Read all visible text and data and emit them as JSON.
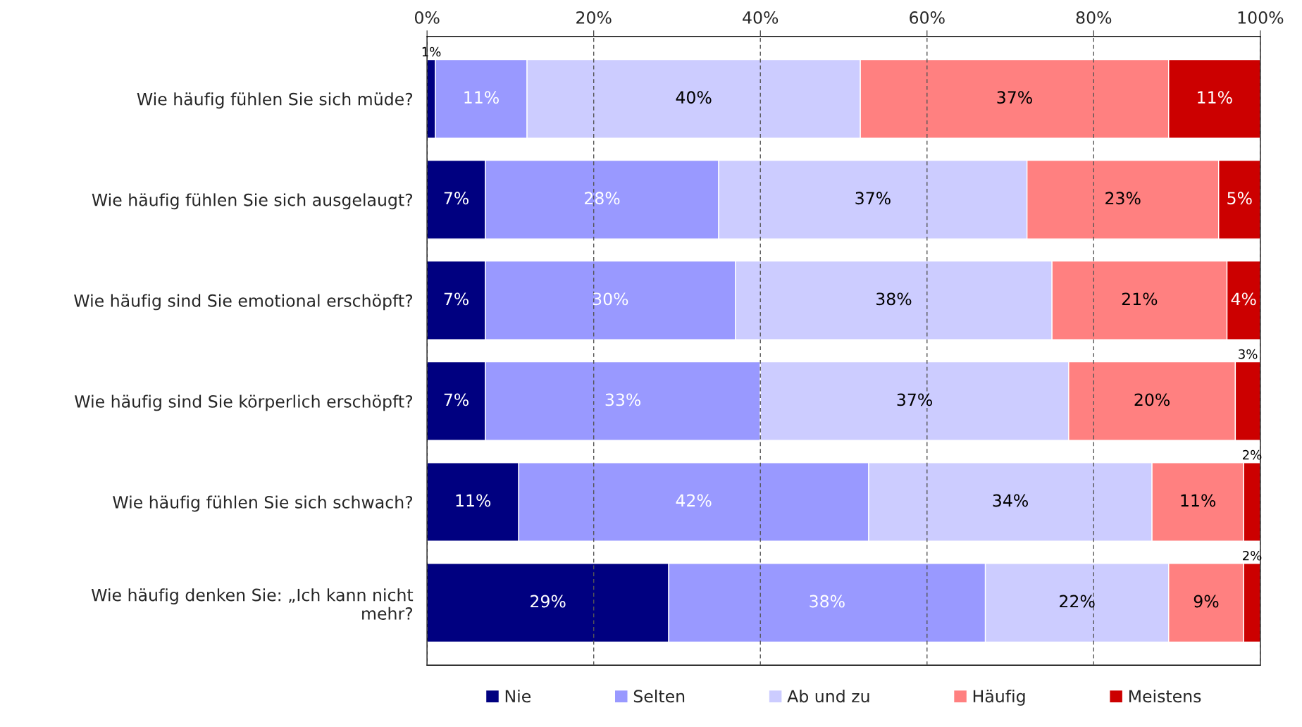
{
  "chart_data": {
    "type": "bar",
    "orientation": "horizontal",
    "stacked": true,
    "grid": "x",
    "legend": "bottom",
    "categories": [
      "Wie häufig fühlen Sie sich müde?",
      "Wie häufig fühlen Sie sich ausgelaugt?",
      "Wie häufig sind Sie emotional erschöpft?",
      "Wie häufig sind Sie körperlich erschöpft?",
      "Wie häufig fühlen Sie sich schwach?",
      "Wie häufig denken Sie: „Ich kann nicht\nmehr?"
    ],
    "series": [
      {
        "name": "Nie",
        "color": "#000080",
        "values": [
          1,
          7,
          7,
          7,
          11,
          29
        ],
        "value_labels": [
          "1%",
          "7%",
          "7%",
          "7%",
          "11%",
          "29%"
        ]
      },
      {
        "name": "Selten",
        "color": "#9999ff",
        "values": [
          11,
          28,
          30,
          33,
          42,
          38
        ],
        "value_labels": [
          "11%",
          "28%",
          "30%",
          "33%",
          "42%",
          "38%"
        ]
      },
      {
        "name": "Ab und zu",
        "color": "#ccccff",
        "values": [
          40,
          37,
          38,
          37,
          34,
          22
        ],
        "value_labels": [
          "40%",
          "37%",
          "38%",
          "37%",
          "34%",
          "22%"
        ]
      },
      {
        "name": "Häufig",
        "color": "#ff8080",
        "values": [
          37,
          23,
          21,
          20,
          11,
          9
        ],
        "value_labels": [
          "37%",
          "23%",
          "21%",
          "20%",
          "11%",
          "9%"
        ]
      },
      {
        "name": "Meistens",
        "color": "#cc0000",
        "values": [
          11,
          5,
          4,
          3,
          2,
          2
        ],
        "value_labels": [
          "11%",
          "5%",
          "4%",
          "3%",
          "2%",
          "2%"
        ]
      }
    ],
    "xlim": [
      0,
      100
    ],
    "xticks": [
      {
        "value": 0,
        "label": "0%"
      },
      {
        "value": 20,
        "label": "20%"
      },
      {
        "value": 40,
        "label": "40%"
      },
      {
        "value": 60,
        "label": "60%"
      },
      {
        "value": 80,
        "label": "80%"
      },
      {
        "value": 100,
        "label": "100%"
      }
    ]
  }
}
